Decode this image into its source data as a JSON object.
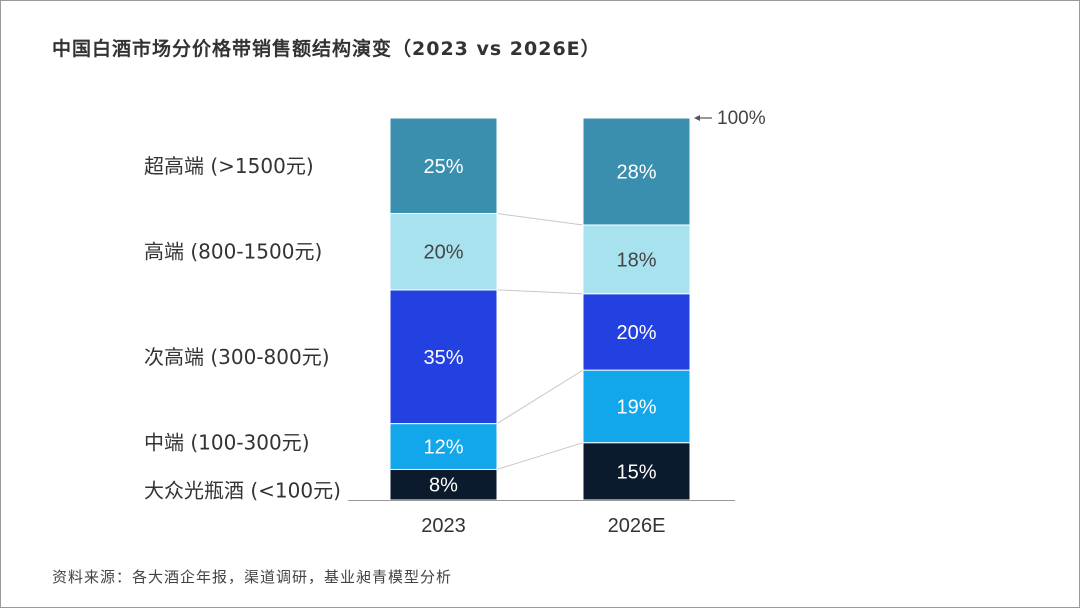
{
  "title": "中国白酒市场分价格带销售额结构演变（2023 vs 2026E）",
  "source": "资料来源：各大酒企年报，渠道调研，基业昶青模型分析",
  "chart_data": {
    "type": "bar",
    "stacked": true,
    "title": "中国白酒市场分价格带销售额结构演变（2023 vs 2026E）",
    "categories": [
      "2023",
      "2026E"
    ],
    "ylim": [
      0,
      100
    ],
    "unit": "%",
    "total_annotation": "100%",
    "series": [
      {
        "name": "大众光瓶酒 (<100元)",
        "color": "#0b1a2c",
        "values": [
          8,
          15
        ]
      },
      {
        "name": "中端 (100-300元)",
        "color": "#12a6ea",
        "values": [
          12,
          19
        ]
      },
      {
        "name": "次高端 (300-800元)",
        "color": "#2340e0",
        "values": [
          35,
          20
        ]
      },
      {
        "name": "高端 (800-1500元)",
        "color": "#a8e2ef",
        "values": [
          20,
          18
        ]
      },
      {
        "name": "超高端 (>1500元)",
        "color": "#3b8fae",
        "values": [
          25,
          28
        ]
      }
    ]
  }
}
